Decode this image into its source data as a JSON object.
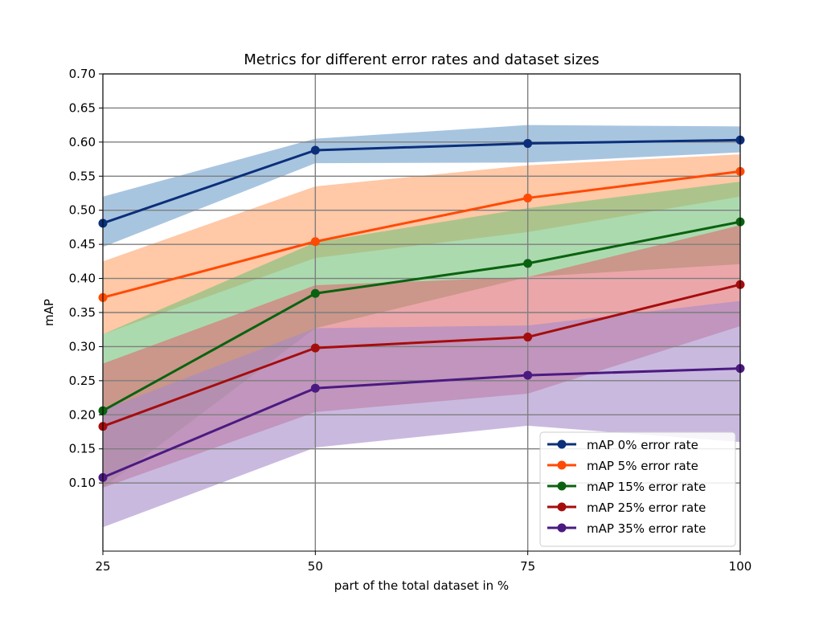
{
  "chart_data": {
    "type": "line",
    "title": "Metrics for different error rates and dataset sizes",
    "xlabel": "part of the total dataset in %",
    "ylabel": "mAP",
    "x": [
      25,
      50,
      75,
      100
    ],
    "xlim": [
      25,
      100
    ],
    "ylim": [
      0.0,
      0.7
    ],
    "x_ticks": [
      "25",
      "50",
      "75",
      "100"
    ],
    "y_ticks": [
      "0.10",
      "0.15",
      "0.20",
      "0.25",
      "0.30",
      "0.35",
      "0.40",
      "0.45",
      "0.50",
      "0.55",
      "0.60",
      "0.65",
      "0.70"
    ],
    "grid": true,
    "legend_position": "lower-right",
    "series": [
      {
        "name": "mAP 0% error rate",
        "color": "#0b2f7a",
        "band_color": "#6e9ecb",
        "values": [
          0.481,
          0.588,
          0.598,
          0.603
        ],
        "lower": [
          0.446,
          0.569,
          0.57,
          0.585
        ],
        "upper": [
          0.52,
          0.605,
          0.625,
          0.623
        ]
      },
      {
        "name": "mAP 5% error rate",
        "color": "#ff4a05",
        "band_color": "#ffa46a",
        "values": [
          0.372,
          0.454,
          0.518,
          0.557
        ],
        "lower": [
          0.318,
          0.43,
          0.468,
          0.52
        ],
        "upper": [
          0.425,
          0.535,
          0.566,
          0.582
        ]
      },
      {
        "name": "mAP 15% error rate",
        "color": "#0a6210",
        "band_color": "#74c27a",
        "values": [
          0.206,
          0.378,
          0.422,
          0.483
        ],
        "lower": [
          0.093,
          0.327,
          0.402,
          0.421
        ],
        "upper": [
          0.318,
          0.453,
          0.503,
          0.542
        ]
      },
      {
        "name": "mAP 25% error rate",
        "color": "#a50d0d",
        "band_color": "#dd6a72",
        "values": [
          0.183,
          0.298,
          0.314,
          0.391
        ],
        "lower": [
          0.093,
          0.204,
          0.231,
          0.33
        ],
        "upper": [
          0.275,
          0.39,
          0.402,
          0.478
        ]
      },
      {
        "name": "mAP 35% error rate",
        "color": "#4b1a80",
        "band_color": "#a58bc9",
        "values": [
          0.108,
          0.239,
          0.258,
          0.268
        ],
        "lower": [
          0.035,
          0.152,
          0.184,
          0.16
        ],
        "upper": [
          0.207,
          0.327,
          0.331,
          0.367
        ]
      }
    ]
  }
}
